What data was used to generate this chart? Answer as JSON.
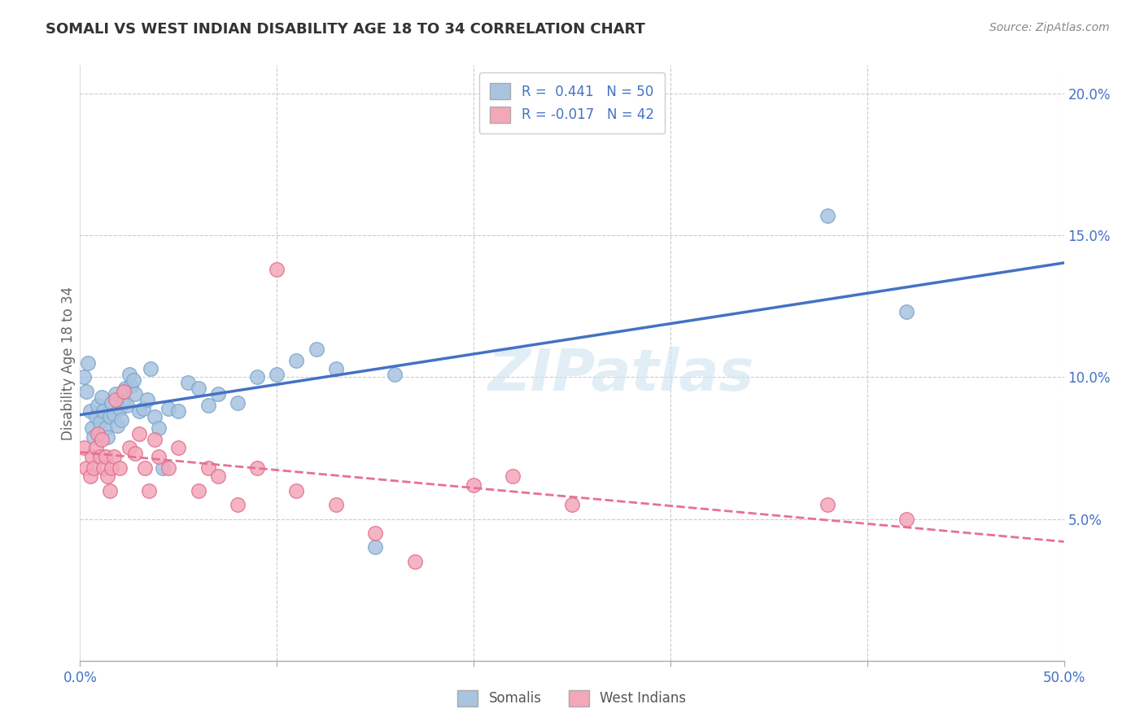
{
  "title": "SOMALI VS WEST INDIAN DISABILITY AGE 18 TO 34 CORRELATION CHART",
  "source": "Source: ZipAtlas.com",
  "ylabel": "Disability Age 18 to 34",
  "xlim": [
    0.0,
    0.5
  ],
  "ylim": [
    0.0,
    0.21
  ],
  "yticks": [
    0.05,
    0.1,
    0.15,
    0.2
  ],
  "yticklabels": [
    "5.0%",
    "10.0%",
    "15.0%",
    "20.0%"
  ],
  "xtick_left_label": "0.0%",
  "xtick_right_label": "50.0%",
  "somali_color": "#a8c4e0",
  "somali_edge_color": "#7ba7cc",
  "west_indian_color": "#f4a7b9",
  "west_indian_edge_color": "#e07090",
  "somali_line_color": "#4472c4",
  "west_indian_line_color": "#e87090",
  "background_color": "#ffffff",
  "grid_color": "#cccccc",
  "legend_R1": "R =  0.441",
  "legend_N1": "N = 50",
  "legend_R2": "R = -0.017",
  "legend_N2": "N = 42",
  "legend_label1": "Somalis",
  "legend_label2": "West Indians",
  "tick_color": "#4472c4",
  "title_color": "#333333",
  "source_color": "#888888",
  "ylabel_color": "#666666",
  "somali_x": [
    0.002,
    0.003,
    0.004,
    0.005,
    0.006,
    0.007,
    0.008,
    0.009,
    0.01,
    0.011,
    0.012,
    0.013,
    0.014,
    0.015,
    0.016,
    0.017,
    0.018,
    0.019,
    0.02,
    0.021,
    0.022,
    0.023,
    0.024,
    0.025,
    0.026,
    0.027,
    0.028,
    0.03,
    0.032,
    0.034,
    0.036,
    0.038,
    0.04,
    0.042,
    0.045,
    0.05,
    0.055,
    0.06,
    0.065,
    0.07,
    0.08,
    0.09,
    0.1,
    0.11,
    0.12,
    0.13,
    0.15,
    0.16,
    0.38,
    0.42
  ],
  "somali_y": [
    0.1,
    0.095,
    0.105,
    0.088,
    0.082,
    0.079,
    0.086,
    0.09,
    0.084,
    0.093,
    0.088,
    0.082,
    0.079,
    0.086,
    0.091,
    0.087,
    0.094,
    0.083,
    0.089,
    0.085,
    0.092,
    0.096,
    0.09,
    0.101,
    0.097,
    0.099,
    0.094,
    0.088,
    0.089,
    0.092,
    0.103,
    0.086,
    0.082,
    0.068,
    0.089,
    0.088,
    0.098,
    0.096,
    0.09,
    0.094,
    0.091,
    0.1,
    0.101,
    0.106,
    0.11,
    0.103,
    0.04,
    0.101,
    0.157,
    0.123
  ],
  "west_indian_x": [
    0.002,
    0.003,
    0.005,
    0.006,
    0.007,
    0.008,
    0.009,
    0.01,
    0.011,
    0.012,
    0.013,
    0.014,
    0.015,
    0.016,
    0.017,
    0.018,
    0.02,
    0.022,
    0.025,
    0.028,
    0.03,
    0.033,
    0.035,
    0.038,
    0.04,
    0.045,
    0.05,
    0.06,
    0.065,
    0.07,
    0.08,
    0.09,
    0.1,
    0.11,
    0.13,
    0.15,
    0.17,
    0.2,
    0.22,
    0.25,
    0.38,
    0.42
  ],
  "west_indian_y": [
    0.075,
    0.068,
    0.065,
    0.072,
    0.068,
    0.075,
    0.08,
    0.072,
    0.078,
    0.068,
    0.072,
    0.065,
    0.06,
    0.068,
    0.072,
    0.092,
    0.068,
    0.095,
    0.075,
    0.073,
    0.08,
    0.068,
    0.06,
    0.078,
    0.072,
    0.068,
    0.075,
    0.06,
    0.068,
    0.065,
    0.055,
    0.068,
    0.138,
    0.06,
    0.055,
    0.045,
    0.035,
    0.062,
    0.065,
    0.055,
    0.055,
    0.05
  ]
}
